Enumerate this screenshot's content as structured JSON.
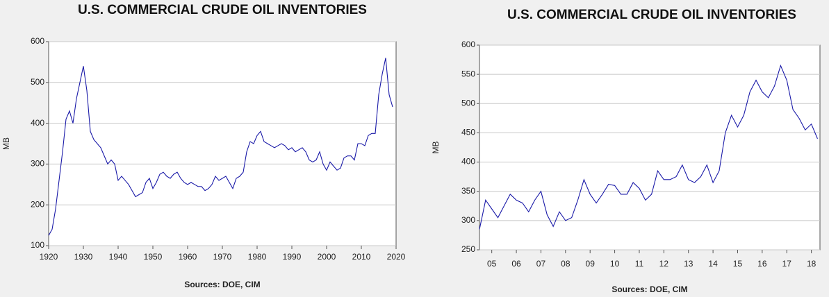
{
  "chart_data": [
    {
      "type": "line",
      "title": "U.S. COMMERCIAL CRUDE OIL INVENTORIES",
      "y_label": "MB",
      "source": "Sources:  DOE, CIM",
      "xlim": [
        1920,
        2020
      ],
      "xticks": [
        1920,
        1930,
        1940,
        1950,
        1960,
        1970,
        1980,
        1990,
        2000,
        2010,
        2020
      ],
      "ylim": [
        100,
        600
      ],
      "yticks": [
        100,
        200,
        300,
        400,
        500,
        600
      ],
      "grid": true,
      "x": [
        1920,
        1921,
        1922,
        1923,
        1924,
        1925,
        1926,
        1927,
        1928,
        1929,
        1930,
        1931,
        1932,
        1933,
        1934,
        1935,
        1936,
        1937,
        1938,
        1939,
        1940,
        1941,
        1942,
        1943,
        1944,
        1945,
        1946,
        1947,
        1948,
        1949,
        1950,
        1951,
        1952,
        1953,
        1954,
        1955,
        1956,
        1957,
        1958,
        1959,
        1960,
        1961,
        1962,
        1963,
        1964,
        1965,
        1966,
        1967,
        1968,
        1969,
        1970,
        1971,
        1972,
        1973,
        1974,
        1975,
        1976,
        1977,
        1978,
        1979,
        1980,
        1981,
        1982,
        1983,
        1984,
        1985,
        1986,
        1987,
        1988,
        1989,
        1990,
        1991,
        1992,
        1993,
        1994,
        1995,
        1996,
        1997,
        1998,
        1999,
        2000,
        2001,
        2002,
        2003,
        2004,
        2005,
        2006,
        2007,
        2008,
        2009,
        2010,
        2011,
        2012,
        2013,
        2014,
        2015,
        2016,
        2017,
        2018,
        2019
      ],
      "series": [
        {
          "name": "Inventories",
          "color": "#1a1aa8",
          "values": [
            125,
            140,
            190,
            260,
            330,
            410,
            430,
            400,
            460,
            500,
            540,
            480,
            380,
            360,
            350,
            340,
            320,
            300,
            310,
            300,
            260,
            270,
            260,
            250,
            235,
            220,
            225,
            230,
            255,
            265,
            240,
            255,
            275,
            280,
            270,
            265,
            275,
            280,
            265,
            255,
            250,
            255,
            250,
            245,
            245,
            235,
            240,
            250,
            270,
            260,
            265,
            270,
            255,
            240,
            265,
            270,
            280,
            330,
            355,
            350,
            370,
            380,
            355,
            350,
            345,
            340,
            345,
            350,
            345,
            335,
            340,
            330,
            335,
            340,
            330,
            310,
            305,
            310,
            330,
            300,
            285,
            305,
            295,
            285,
            290,
            315,
            320,
            320,
            310,
            350,
            350,
            345,
            370,
            375,
            375,
            470,
            520,
            560,
            470,
            440
          ]
        }
      ]
    },
    {
      "type": "line",
      "title": "U.S. COMMERCIAL CRUDE OIL INVENTORIES",
      "y_label": "MB",
      "source": "Sources:  DOE, CIM",
      "xlim": [
        2005,
        2018.85
      ],
      "xticks": [
        {
          "value": 2005.5,
          "label": "05"
        },
        {
          "value": 2006.5,
          "label": "06"
        },
        {
          "value": 2007.5,
          "label": "07"
        },
        {
          "value": 2008.5,
          "label": "08"
        },
        {
          "value": 2009.5,
          "label": "09"
        },
        {
          "value": 2010.5,
          "label": "10"
        },
        {
          "value": 2011.5,
          "label": "11"
        },
        {
          "value": 2012.5,
          "label": "12"
        },
        {
          "value": 2013.5,
          "label": "13"
        },
        {
          "value": 2014.5,
          "label": "14"
        },
        {
          "value": 2015.5,
          "label": "15"
        },
        {
          "value": 2016.5,
          "label": "16"
        },
        {
          "value": 2017.5,
          "label": "17"
        },
        {
          "value": 2018.5,
          "label": "18"
        }
      ],
      "ylim": [
        250,
        600
      ],
      "yticks": [
        250,
        300,
        350,
        400,
        450,
        500,
        550,
        600
      ],
      "grid": true,
      "x": [
        2005,
        2005.25,
        2005.5,
        2005.75,
        2006,
        2006.25,
        2006.5,
        2006.75,
        2007,
        2007.25,
        2007.5,
        2007.75,
        2008,
        2008.25,
        2008.5,
        2008.75,
        2009,
        2009.25,
        2009.5,
        2009.75,
        2010,
        2010.25,
        2010.5,
        2010.75,
        2011,
        2011.25,
        2011.5,
        2011.75,
        2012,
        2012.25,
        2012.5,
        2012.75,
        2013,
        2013.25,
        2013.5,
        2013.75,
        2014,
        2014.25,
        2014.5,
        2014.75,
        2015,
        2015.25,
        2015.5,
        2015.75,
        2016,
        2016.25,
        2016.5,
        2016.75,
        2017,
        2017.25,
        2017.5,
        2017.75,
        2018,
        2018.25,
        2018.5,
        2018.75
      ],
      "series": [
        {
          "name": "Inventories",
          "color": "#1a1aa8",
          "values": [
            285,
            335,
            320,
            305,
            325,
            345,
            335,
            330,
            315,
            335,
            350,
            310,
            290,
            315,
            300,
            305,
            335,
            370,
            345,
            330,
            345,
            362,
            360,
            345,
            345,
            365,
            355,
            335,
            345,
            385,
            370,
            370,
            375,
            395,
            370,
            365,
            375,
            395,
            365,
            385,
            450,
            480,
            460,
            480,
            520,
            540,
            520,
            510,
            530,
            565,
            540,
            490,
            475,
            455,
            465,
            440
          ]
        }
      ]
    }
  ]
}
